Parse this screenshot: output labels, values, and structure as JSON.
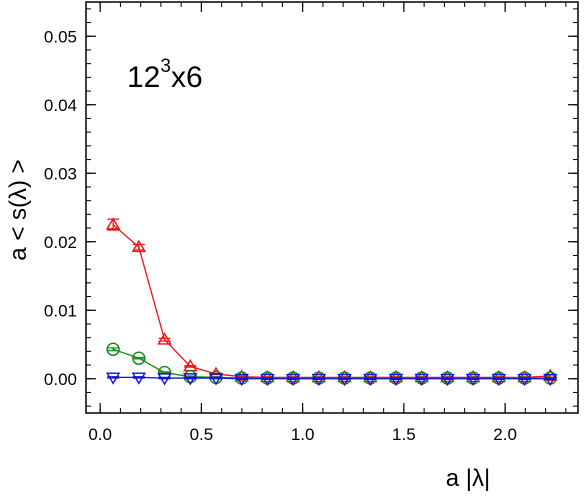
{
  "chart_data": {
    "type": "line",
    "title": "",
    "annotation": {
      "base": "12",
      "exponent": "3",
      "suffix": "x6"
    },
    "xlabel": "a |λ|",
    "ylabel": "a < s(λ) >",
    "xlim": [
      -0.07,
      2.36
    ],
    "ylim": [
      -0.005,
      0.055
    ],
    "xticks": [
      0.0,
      0.5,
      1.0,
      1.5,
      2.0
    ],
    "xtick_labels": [
      "0.0",
      "0.5",
      "1.0",
      "1.5",
      "2.0"
    ],
    "yticks": [
      0.0,
      0.01,
      0.02,
      0.03,
      0.04,
      0.05
    ],
    "ytick_labels": [
      "0.00",
      "0.01",
      "0.02",
      "0.03",
      "0.04",
      "0.05"
    ],
    "grid": false,
    "x": [
      0.064,
      0.191,
      0.318,
      0.445,
      0.572,
      0.699,
      0.826,
      0.953,
      1.08,
      1.207,
      1.334,
      1.461,
      1.588,
      1.715,
      1.842,
      1.969,
      2.096,
      2.223
    ],
    "series": [
      {
        "marker": "triangle-up",
        "color": "#ee1111",
        "values": [
          0.0225,
          0.0192,
          0.0057,
          0.0018,
          0.0007,
          0.0003,
          0.0002,
          0.0002,
          0.0002,
          0.0002,
          0.0002,
          0.0002,
          0.0002,
          0.0002,
          0.0002,
          0.0002,
          0.0002,
          0.0004
        ],
        "errors": [
          0.0008,
          0.0004,
          0.0002,
          0.0001,
          0.0001,
          0.0001,
          0.0001,
          0.0001,
          0.0001,
          0.0001,
          0.0001,
          0.0001,
          0.0001,
          0.0001,
          0.0001,
          0.0001,
          0.0001,
          0.0002
        ]
      },
      {
        "marker": "circle",
        "color": "#118811",
        "values": [
          0.0043,
          0.003,
          0.0009,
          0.0003,
          0.0002,
          0.0001,
          0.0001,
          0.0001,
          0.0001,
          0.0001,
          0.0001,
          0.0001,
          0.0001,
          0.0001,
          0.0001,
          0.0001,
          0.0001,
          0.0001
        ],
        "errors": [
          0.0002,
          0.0001,
          0.0001,
          0.0001,
          0.0001,
          0.0001,
          0.0001,
          0.0001,
          0.0001,
          0.0001,
          0.0001,
          0.0001,
          0.0001,
          0.0001,
          0.0001,
          0.0001,
          0.0001,
          0.0001
        ]
      },
      {
        "marker": "triangle-down",
        "color": "#1111dd",
        "values": [
          0.0002,
          0.0002,
          0.0001,
          0.0001,
          0.0001,
          0.0,
          0.0,
          0.0,
          0.0,
          0.0,
          0.0,
          0.0,
          0.0,
          0.0,
          0.0,
          0.0,
          0.0,
          0.0
        ],
        "errors": [
          0.0001,
          0.0001,
          0.0001,
          0.0001,
          0.0001,
          0.0001,
          0.0001,
          0.0001,
          0.0001,
          0.0001,
          0.0001,
          0.0001,
          0.0001,
          0.0001,
          0.0001,
          0.0001,
          0.0001,
          0.0001
        ]
      }
    ]
  }
}
